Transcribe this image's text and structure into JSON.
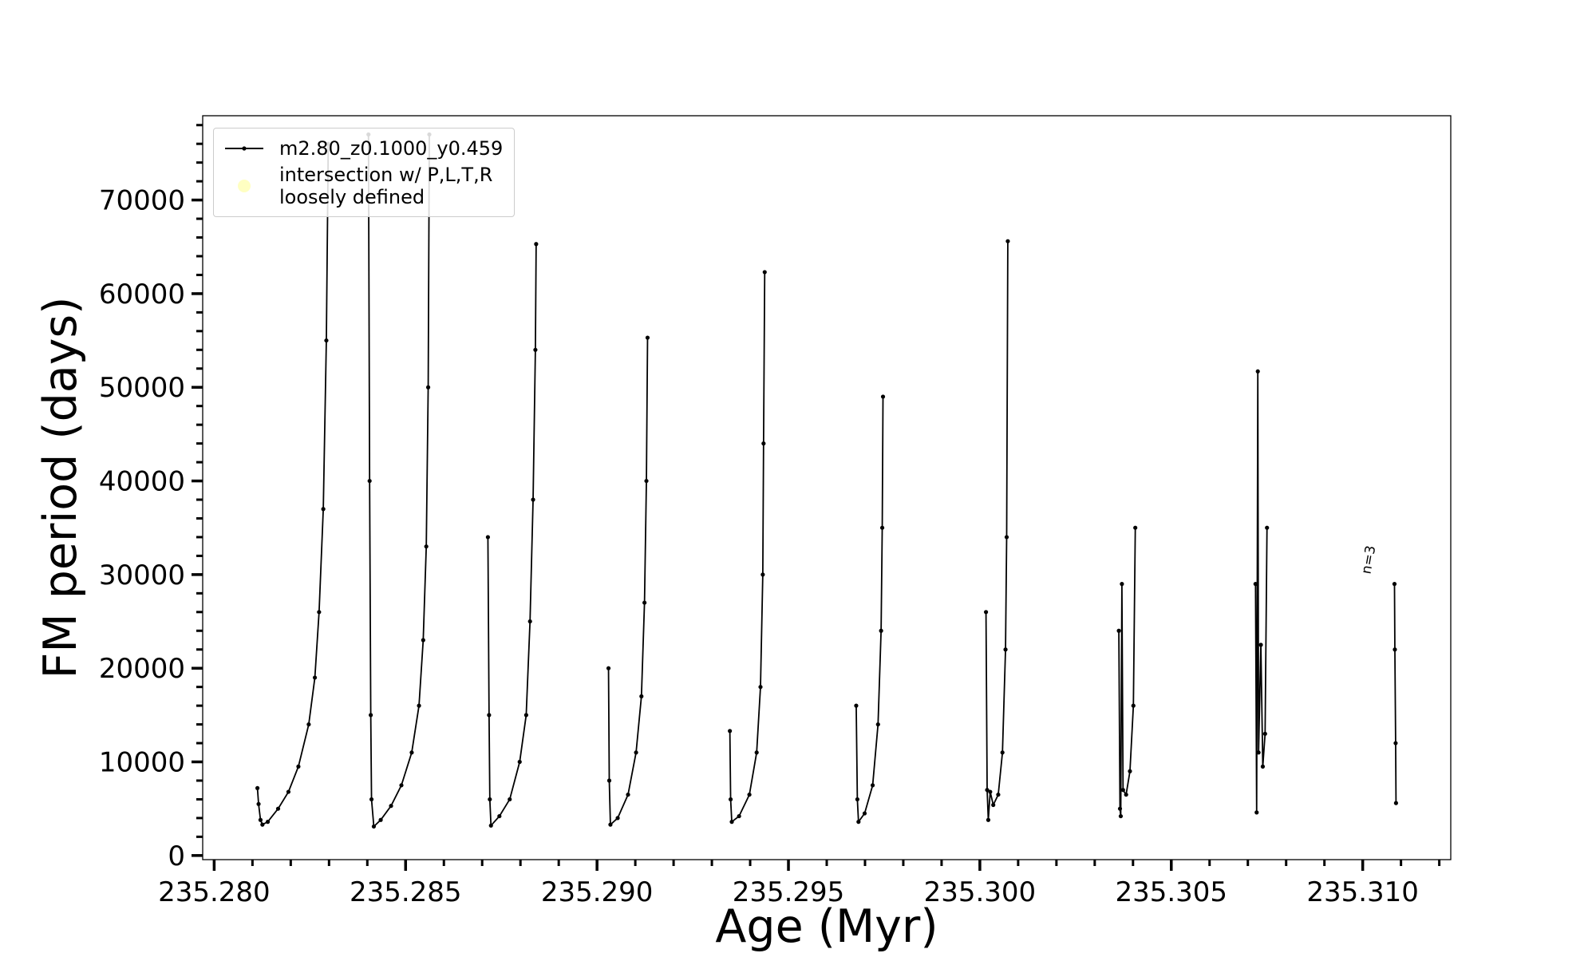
{
  "chart_data": {
    "type": "line",
    "xlabel": "Age (Myr)",
    "ylabel": "FM period (days)",
    "xlim": [
      235.2797,
      235.3123
    ],
    "ylim": [
      -440,
      79000
    ],
    "xticks": [
      {
        "value": 235.28,
        "label": "235.280"
      },
      {
        "value": 235.285,
        "label": "235.285"
      },
      {
        "value": 235.29,
        "label": "235.290"
      },
      {
        "value": 235.295,
        "label": "235.295"
      },
      {
        "value": 235.3,
        "label": "235.300"
      },
      {
        "value": 235.305,
        "label": "235.305"
      },
      {
        "value": 235.31,
        "label": "235.310"
      }
    ],
    "yticks": [
      0,
      10000,
      20000,
      30000,
      40000,
      50000,
      60000,
      70000
    ],
    "xminorticks": [
      235.28,
      235.281,
      235.282,
      235.283,
      235.284,
      235.285,
      235.286,
      235.287,
      235.288,
      235.289,
      235.29,
      235.291,
      235.292,
      235.293,
      235.294,
      235.295,
      235.296,
      235.297,
      235.298,
      235.299,
      235.3,
      235.301,
      235.302,
      235.303,
      235.304,
      235.305,
      235.306,
      235.307,
      235.308,
      235.309,
      235.31,
      235.311,
      235.312
    ],
    "yminorticks": [
      0,
      2000,
      4000,
      6000,
      8000,
      10000,
      12000,
      14000,
      16000,
      18000,
      20000,
      22000,
      24000,
      26000,
      28000,
      30000,
      32000,
      34000,
      36000,
      38000,
      40000,
      42000,
      44000,
      46000,
      48000,
      50000,
      52000,
      54000,
      56000,
      58000,
      60000,
      62000,
      64000,
      66000,
      68000,
      70000,
      72000,
      74000,
      76000,
      78000
    ],
    "legend": "upper left",
    "series": [
      {
        "name": "m2.80_z0.1000_y0.459",
        "color": "#000000",
        "x": [
          235.28113,
          235.28116,
          235.28121,
          235.28126,
          235.2814,
          235.28167,
          235.28194,
          235.2822,
          235.28247,
          235.28263,
          235.28274,
          235.28285,
          235.28293,
          235.28298,
          null,
          235.28403,
          235.28406,
          235.28409,
          235.28411,
          235.28417,
          235.28435,
          235.28462,
          235.28489,
          235.28516,
          235.28535,
          235.28546,
          235.28554,
          235.28559,
          235.28562,
          null,
          235.28715,
          235.28718,
          235.2872,
          235.28723,
          235.28745,
          235.28772,
          235.28798,
          235.28815,
          235.28825,
          235.28833,
          235.28839,
          235.28841,
          null,
          235.2903,
          235.29032,
          235.29035,
          235.29054,
          235.29081,
          235.29102,
          235.29116,
          235.29124,
          235.29129,
          235.29132,
          null,
          235.29347,
          235.29349,
          235.29352,
          235.29371,
          235.29398,
          235.29417,
          235.29427,
          235.29433,
          235.29435,
          235.29438,
          null,
          235.29677,
          235.2968,
          235.29683,
          235.29699,
          235.2972,
          235.29734,
          235.29742,
          235.29745,
          235.29747,
          null,
          235.30016,
          235.30019,
          235.30022,
          235.30027,
          235.30035,
          235.30048,
          235.30059,
          235.30067,
          235.3007,
          235.30073,
          null,
          235.30363,
          235.30366,
          235.30368,
          235.30371,
          235.30374,
          235.30382,
          235.30392,
          235.30401,
          235.30406,
          null,
          235.3072,
          235.30723,
          235.30726,
          235.30728,
          235.30734,
          235.30739,
          235.30745,
          235.3075,
          null,
          235.31083,
          235.31084,
          235.31086,
          235.31087
        ],
        "values": [
          7200,
          5500,
          3800,
          3300,
          3600,
          5000,
          6800,
          9500,
          14000,
          19000,
          26000,
          37000,
          55000,
          76000,
          null,
          77000,
          40000,
          15000,
          6000,
          3100,
          3800,
          5300,
          7500,
          11000,
          16000,
          23000,
          33000,
          50000,
          77000,
          null,
          34000,
          15000,
          6000,
          3200,
          4200,
          6000,
          10000,
          15000,
          25000,
          38000,
          54000,
          65300,
          null,
          20000,
          8000,
          3300,
          4000,
          6500,
          11000,
          17000,
          27000,
          40000,
          55300,
          null,
          13300,
          6000,
          3600,
          4200,
          6500,
          11000,
          18000,
          30000,
          44000,
          62300,
          null,
          16000,
          6000,
          3600,
          4500,
          7500,
          14000,
          24000,
          35000,
          49000,
          null,
          26000,
          7000,
          3800,
          6800,
          5400,
          6500,
          11000,
          22000,
          34000,
          65600,
          null,
          24000,
          5000,
          4200,
          29000,
          7000,
          6500,
          9000,
          16000,
          35000,
          null,
          29000,
          4600,
          51700,
          11000,
          22500,
          9500,
          13000,
          35000,
          null,
          29000,
          22000,
          12000,
          5600
        ]
      },
      {
        "name": "intersection w/ P,L,T,R\nloosely defined",
        "color": "#ffffb3",
        "x": [],
        "values": []
      }
    ],
    "annotations": [
      {
        "text": "n=3",
        "x": 235.3102,
        "y": 30000
      }
    ]
  }
}
